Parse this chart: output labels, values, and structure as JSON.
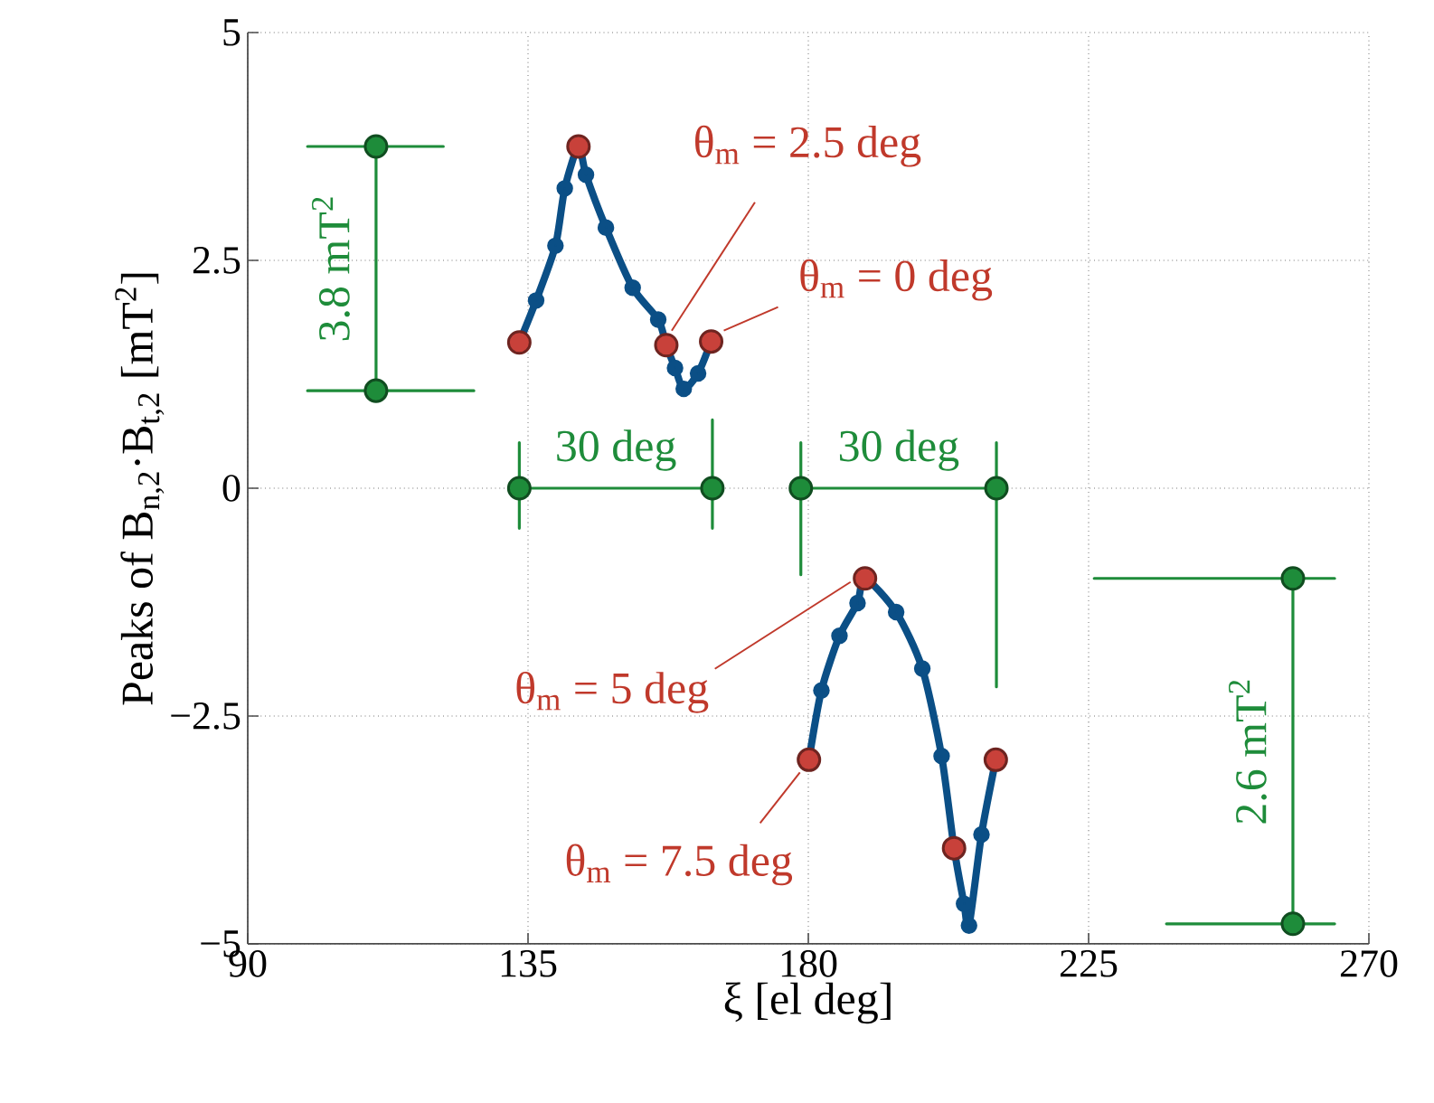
{
  "chart_data": {
    "type": "line",
    "xlabel": "ξ [el deg]",
    "ylabel": "Peaks of  B$_{n,2}$·B$_{t,2}$ [mT$^{2}$]",
    "xlim": [
      90,
      270
    ],
    "ylim": [
      -5,
      5
    ],
    "xticks": [
      90,
      135,
      180,
      225,
      270
    ],
    "yticks": [
      {
        "value": -5,
        "label": "−5"
      },
      {
        "value": -2.5,
        "label": "−2.5"
      },
      0,
      2.5,
      5
    ],
    "grid": true,
    "series": [
      {
        "color": "#0b4f86",
        "marker": "circle",
        "x": [
          133.6,
          136.3,
          139.4,
          140.9,
          143.1,
          144.3,
          147.5,
          151.8,
          155.9,
          157.2,
          158.6,
          160.0,
          162.3,
          164.4
        ],
        "values": [
          1.6,
          2.06,
          2.66,
          3.29,
          3.75,
          3.44,
          2.86,
          2.2,
          1.85,
          1.57,
          1.32,
          1.09,
          1.26,
          1.61
        ]
      },
      {
        "color": "#0b4f86",
        "marker": "circle",
        "x": [
          180.1,
          182.1,
          185.0,
          187.9,
          189.1,
          194.1,
          198.3,
          201.4,
          203.4,
          205.0,
          205.8,
          207.8,
          210.1
        ],
        "values": [
          -2.98,
          -2.22,
          -1.62,
          -1.26,
          -0.99,
          -1.36,
          -1.98,
          -2.94,
          -3.95,
          -4.56,
          -4.8,
          -3.8,
          -2.98
        ]
      },
      {
        "type": "scatter",
        "color": "#c8413a",
        "marker": "circle",
        "x": [
          133.6,
          143.1,
          157.2,
          164.4,
          180.1,
          189.1,
          203.4,
          210.1
        ],
        "values": [
          1.6,
          3.75,
          1.57,
          1.61,
          -2.98,
          -0.99,
          -3.95,
          -2.98
        ]
      },
      {
        "color": "#1e8c3a",
        "marker": "none",
        "x": [
          99.6,
          121.4,
          null,
          99.6,
          126.3,
          null,
          110.6,
          110.6,
          null,
          133.6,
          133.6,
          null,
          164.6,
          164.6,
          null,
          133.6,
          164.6,
          null,
          178.8,
          178.8,
          null,
          210.2,
          210.2,
          null,
          178.8,
          210.2,
          null,
          225.9,
          264.5,
          null,
          237.5,
          264.5,
          null,
          257.8,
          257.8
        ],
        "values": [
          3.75,
          3.75,
          null,
          1.07,
          1.07,
          null,
          3.75,
          1.07,
          null,
          0.5,
          -0.44,
          null,
          0.75,
          -0.44,
          null,
          0,
          0,
          null,
          0.5,
          -0.95,
          null,
          0.5,
          -2.18,
          null,
          0,
          0,
          null,
          -0.99,
          -0.99,
          null,
          -4.78,
          -4.78,
          null,
          -0.99,
          -4.78
        ]
      },
      {
        "type": "scatter",
        "color": "#1e8c3a",
        "marker": "circle",
        "x": [
          110.6,
          110.6,
          133.6,
          164.6,
          178.8,
          210.2,
          257.8,
          257.8
        ],
        "values": [
          3.75,
          1.07,
          0,
          0,
          0,
          0,
          -0.99,
          -4.78
        ]
      }
    ],
    "annotations": [
      {
        "text": "3.8 mT$^{2}$",
        "x": 110.6,
        "y": 2.41
      },
      {
        "text": "30 deg",
        "x": 149.1,
        "y": 0
      },
      {
        "text": "30 deg",
        "x": 194.5,
        "y": 0
      },
      {
        "text": "2.6 mT$^{2}$",
        "x": 257.8,
        "y": -2.89
      },
      {
        "text": "θ$_{m}$ = 2.5 deg",
        "x": 157.2,
        "y": 1.57
      },
      {
        "text": "θ$_{m}$ = 0 deg",
        "x": 164.4,
        "y": 1.61
      },
      {
        "text": "θ$_{m}$ = 5 deg",
        "x": 189.1,
        "y": -0.99
      },
      {
        "text": "θ$_{m}$ = 7.5 deg",
        "x": 180.1,
        "y": -2.98
      }
    ]
  }
}
